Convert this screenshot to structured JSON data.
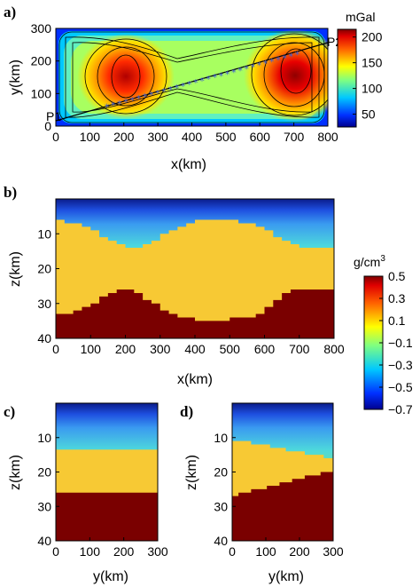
{
  "chart_data": [
    {
      "type": "heatmap",
      "panel_label": "a)",
      "xlabel": "x(km)",
      "ylabel": "y(km)",
      "xlim": [
        0,
        800
      ],
      "ylim": [
        0,
        300
      ],
      "xticks": [
        "0",
        "100",
        "200",
        "300",
        "400",
        "500",
        "600",
        "700",
        "800"
      ],
      "yticks": [
        "0",
        "100",
        "200",
        "300"
      ],
      "colorbar": {
        "title": "mGal",
        "range": [
          25,
          215
        ],
        "ticks": [
          "200",
          "150",
          "100",
          "50"
        ],
        "tick_values": [
          200,
          150,
          100,
          50
        ]
      },
      "anomaly_peaks": [
        {
          "x": 200,
          "y": 150,
          "value": 205
        },
        {
          "x": 700,
          "y": 170,
          "value": 215
        }
      ],
      "profile": {
        "start_label": "P1",
        "end_label": "P2",
        "start": [
          0,
          15
        ],
        "end": [
          800,
          245
        ]
      }
    },
    {
      "type": "heatmap",
      "panel_label": "b)",
      "xlabel": "x(km)",
      "ylabel": "z(km)",
      "xlim": [
        0,
        800
      ],
      "ylim": [
        40,
        0
      ],
      "xticks": [
        "0",
        "100",
        "200",
        "300",
        "400",
        "500",
        "600",
        "700",
        "800"
      ],
      "yticks": [
        "10",
        "20",
        "30",
        "40"
      ],
      "moho_depth_profile": {
        "x": [
          0,
          50,
          100,
          150,
          175,
          200,
          225,
          250,
          300,
          350,
          400,
          500,
          550,
          600,
          650,
          700,
          800
        ],
        "z": [
          33,
          32.5,
          30.5,
          27.5,
          26,
          26,
          26.5,
          28,
          31,
          33.5,
          34.5,
          34.5,
          34,
          32,
          28,
          25.5,
          25.5
        ]
      },
      "crust_top_profile": {
        "x": [
          0,
          50,
          100,
          150,
          200,
          250,
          300,
          350,
          400,
          450,
          500,
          600,
          650,
          700,
          800
        ],
        "z": [
          6,
          7,
          8.5,
          11.5,
          13.5,
          13.5,
          11,
          8,
          6,
          6,
          6,
          8,
          11.5,
          13.5,
          13.5
        ]
      }
    },
    {
      "type": "heatmap",
      "panel_label": "c)",
      "xlabel": "y(km)",
      "ylabel": "z(km)",
      "xlim": [
        0,
        300
      ],
      "ylim": [
        40,
        0
      ],
      "xticks": [
        "0",
        "100",
        "200",
        "300"
      ],
      "yticks": [
        "10",
        "20",
        "30",
        "40"
      ],
      "moho_depth": 26,
      "crust_top_depth": 13.5
    },
    {
      "type": "heatmap",
      "panel_label": "d)",
      "xlabel": "y(km)",
      "ylabel": "z(km)",
      "xlim": [
        0,
        300
      ],
      "ylim": [
        40,
        0
      ],
      "xticks": [
        "0",
        "100",
        "200",
        "300"
      ],
      "yticks": [
        "10",
        "20",
        "30",
        "40"
      ],
      "moho_depth_profile": {
        "x": [
          0,
          300
        ],
        "z": [
          27,
          19.5
        ]
      },
      "crust_top_profile": {
        "x": [
          0,
          300
        ],
        "z": [
          10.5,
          16
        ]
      }
    }
  ],
  "density_colorbar": {
    "unit": "g/cm",
    "unit_power": "3",
    "ticks": [
      "0.5",
      "0.3",
      "0.1",
      "−0.1",
      "−0.3",
      "−0.5",
      "−0.7"
    ],
    "tick_values": [
      0.5,
      0.3,
      0.1,
      -0.1,
      -0.3,
      -0.5,
      -0.7
    ],
    "range": [
      -0.7,
      0.5
    ]
  },
  "colors": {
    "mantle": "#7a0000",
    "crust": "#f7c934",
    "upper_layers": [
      "#0a1c8a",
      "#1e4fe0",
      "#3a9bf0",
      "#4dd8dc",
      "#80e47a",
      "#a8e44a",
      "#c8e040"
    ],
    "profile_marker": "#3c5bd6"
  }
}
